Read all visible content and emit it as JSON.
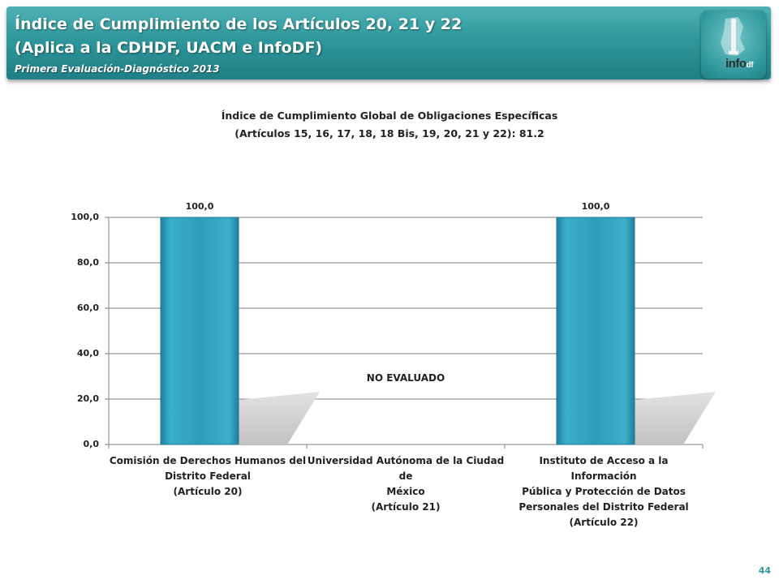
{
  "header": {
    "title_line1": "Índice de Cumplimiento de los Artículos 20, 21 y 22",
    "title_line2": "(Aplica a la CDHDF, UACM e InfoDF)",
    "subtitle": "Primera Evaluación-Diagnóstico 2013",
    "logo_text": "info",
    "logo_suffix": "df"
  },
  "chart_data": {
    "type": "bar",
    "title_line1": "Índice de Cumplimiento Global de Obligaciones Específicas",
    "title_line2": "(Artículos 15, 16, 17, 18, 18 Bis, 19, 20, 21 y 22): 81.2",
    "categories": [
      [
        "Comisión de Derechos Humanos del",
        "Distrito Federal",
        "(Artículo 20)"
      ],
      [
        "Universidad Autónoma de la Ciudad de",
        "México",
        "(Artículo 21)"
      ],
      [
        "Instituto de Acceso a la Información",
        "Pública y Protección de Datos",
        "Personales del Distrito Federal",
        "(Artículo 22)"
      ]
    ],
    "values": [
      100.0,
      null,
      100.0
    ],
    "data_labels": [
      "100,0",
      "",
      "100,0"
    ],
    "y_ticks": [
      "0,0",
      "20,0",
      "40,0",
      "60,0",
      "80,0",
      "100,0"
    ],
    "ylim": [
      0,
      100
    ],
    "grid": true,
    "annotation": "NO  EVALUADO",
    "bar_color": "#2e9dbb"
  },
  "footer": {
    "page_number": "44"
  }
}
